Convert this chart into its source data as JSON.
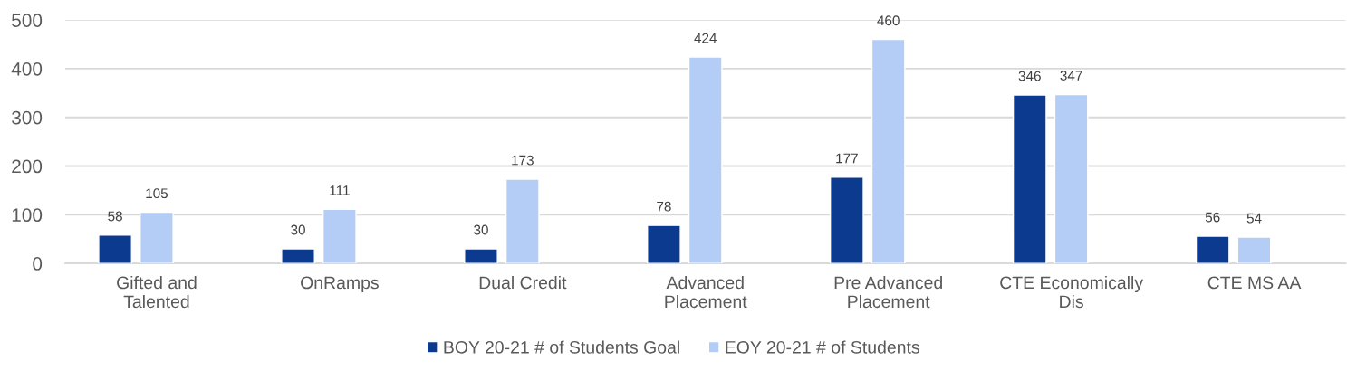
{
  "chart_data": {
    "type": "bar",
    "categories": [
      "Gifted and\nTalented",
      "OnRamps",
      "Dual Credit",
      "Advanced\nPlacement",
      "Pre Advanced\nPlacement",
      "CTE Economically\nDis",
      "CTE MS AA"
    ],
    "series": [
      {
        "name": "BOY 20-21 # of Students Goal",
        "color": "#0b3a8e",
        "values": [
          58,
          30,
          30,
          78,
          177,
          346,
          56
        ]
      },
      {
        "name": "EOY 20-21 # of Students",
        "color": "#b4cdf7",
        "values": [
          105,
          111,
          173,
          424,
          460,
          347,
          54
        ]
      }
    ],
    "ylim": [
      0,
      500
    ],
    "yticks": [
      0,
      100,
      200,
      300,
      400,
      500
    ],
    "grid": "y",
    "legend": "bottom",
    "data_labels": true
  }
}
